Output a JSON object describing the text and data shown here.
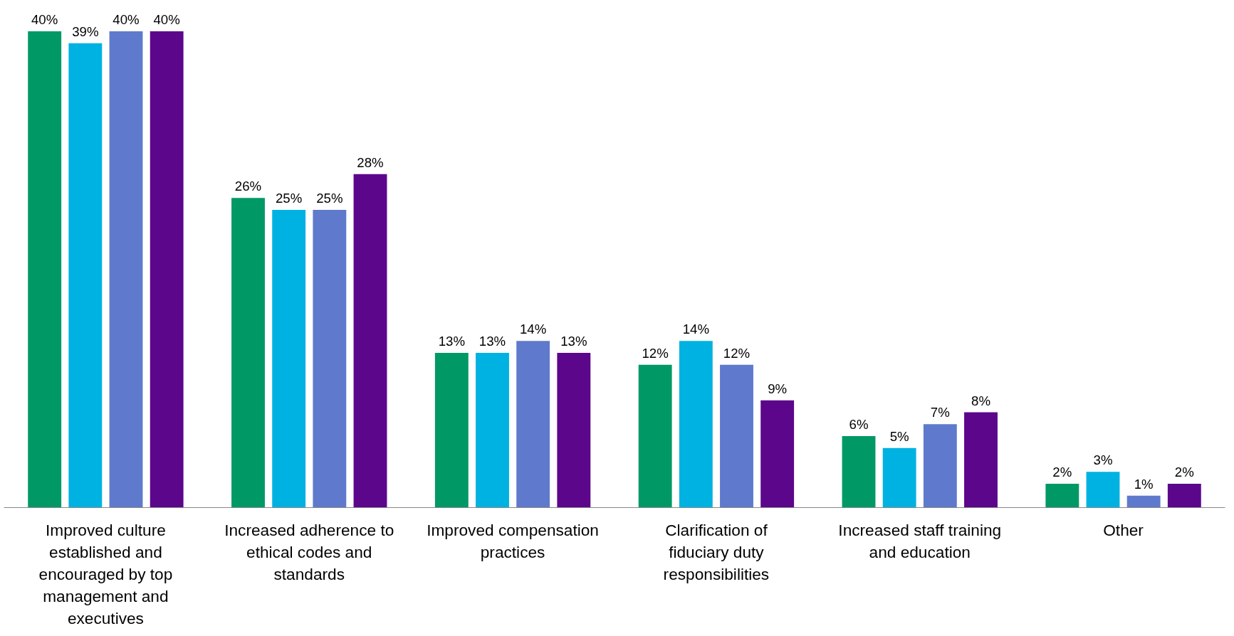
{
  "chart_data": {
    "type": "bar",
    "categories": [
      "Improved culture established and encouraged by top management and executives",
      "Increased adherence to ethical codes and standards",
      "Improved compensation practices",
      "Clarification of fiduciary duty responsibilities",
      "Increased staff training and education",
      "Other"
    ],
    "series": [
      {
        "color": "#009966",
        "values": [
          40,
          26,
          13,
          12,
          6,
          2
        ],
        "value_labels": [
          "40%",
          "26%",
          "13%",
          "12%",
          "6%",
          "2%"
        ]
      },
      {
        "color": "#00b2e2",
        "values": [
          39,
          25,
          13,
          14,
          5,
          3
        ],
        "value_labels": [
          "39%",
          "25%",
          "13%",
          "14%",
          "5%",
          "3%"
        ]
      },
      {
        "color": "#5f7acc",
        "values": [
          40,
          25,
          14,
          12,
          7,
          1
        ],
        "value_labels": [
          "40%",
          "25%",
          "14%",
          "12%",
          "7%",
          "1%"
        ]
      },
      {
        "color": "#5c068c",
        "values": [
          40,
          28,
          13,
          9,
          8,
          2
        ],
        "value_labels": [
          "40%",
          "28%",
          "13%",
          "9%",
          "8%",
          "2%"
        ]
      }
    ],
    "grid": false
  }
}
